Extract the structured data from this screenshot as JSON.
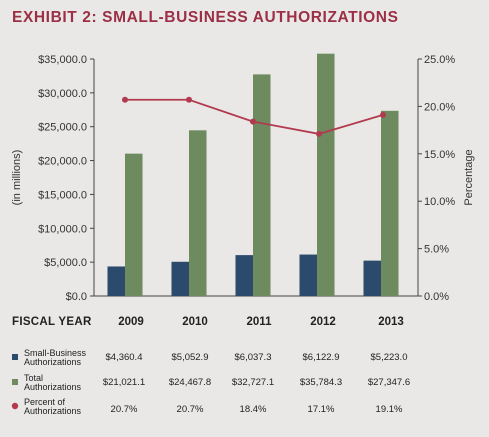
{
  "title": "EXHIBIT 2: SMALL-BUSINESS AUTHORIZATIONS",
  "chart_data": {
    "type": "bar",
    "categories": [
      "2009",
      "2010",
      "2011",
      "2012",
      "2013"
    ],
    "series": [
      {
        "name": "Small-Business Authorizations",
        "kind": "bar",
        "axis": "left",
        "color": "#2c4a6b",
        "values": [
          4360.4,
          5052.9,
          6037.3,
          6122.9,
          5223.0
        ]
      },
      {
        "name": "Total Authorizations",
        "kind": "bar",
        "axis": "left",
        "color": "#6e8a5f",
        "values": [
          21021.1,
          24467.8,
          32727.1,
          35784.3,
          27347.6
        ]
      },
      {
        "name": "Percent of Authorizations",
        "kind": "line",
        "axis": "right",
        "color": "#b23a4e",
        "values": [
          20.7,
          20.7,
          18.4,
          17.1,
          19.1
        ]
      }
    ],
    "ylabel": "(in millions)",
    "y2label": "Percentage",
    "ylim": [
      0,
      35000
    ],
    "y2lim": [
      0,
      25
    ],
    "yticks": [
      "$0.0",
      "$5,000.0",
      "$10,000.0",
      "$15,000.0",
      "$20,000.0",
      "$25,000.0",
      "$30,000.0",
      "$35,000.0"
    ],
    "y2ticks": [
      "0.0%",
      "5.0%",
      "10.0%",
      "15.0%",
      "20.0%",
      "25.0%"
    ],
    "grid": false
  },
  "table": {
    "header": "FISCAL YEAR",
    "rows": [
      {
        "label1": "Small-Business",
        "label2": "Authorizations",
        "marker": "square",
        "color": "#2c4a6b",
        "values": [
          "$4,360.4",
          "$5,052.9",
          "$6,037.3",
          "$6,122.9",
          "$5,223.0"
        ]
      },
      {
        "label1": "Total",
        "label2": "Authorizations",
        "marker": "square",
        "color": "#6e8a5f",
        "values": [
          "$21,021.1",
          "$24,467.8",
          "$32,727.1",
          "$35,784.3",
          "$27,347.6"
        ]
      },
      {
        "label1": "Percent of",
        "label2": "Authorizations",
        "marker": "circle",
        "color": "#b23a4e",
        "values": [
          "20.7%",
          "20.7%",
          "18.4%",
          "17.1%",
          "19.1%"
        ]
      }
    ]
  }
}
